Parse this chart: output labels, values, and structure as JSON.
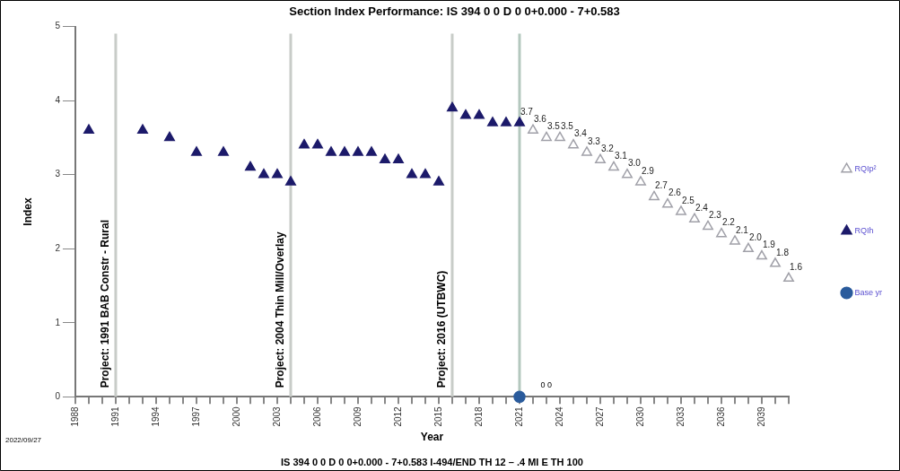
{
  "chart_data": {
    "type": "scatter",
    "title": "Section Index Performance: IS 394 0 0 D 0 0+0.000 - 7+0.583",
    "xlabel": "Year",
    "ylabel": "Index",
    "annotations": [
      "IS 394 0 0 D 0 0+0.000 - 7+0.583 I-494/END TH 12 – .4 MI E TH 100",
      "2022/09/27",
      "0 0"
    ],
    "xlim": [
      1988,
      2041
    ],
    "ylim": [
      0,
      5
    ],
    "yticks": [
      0,
      1,
      2,
      3,
      4,
      5
    ],
    "xticks": [
      1988,
      {
        "value": 1989,
        "label": null
      },
      {
        "value": 1990,
        "label": null
      },
      1991,
      {
        "value": 1992,
        "label": null
      },
      {
        "value": 1993,
        "label": null
      },
      1994,
      {
        "value": 1995,
        "label": null
      },
      {
        "value": 1996,
        "label": null
      },
      1997,
      {
        "value": 1998,
        "label": null
      },
      {
        "value": 1999,
        "label": null
      },
      2000,
      {
        "value": 2001,
        "label": null
      },
      {
        "value": 2002,
        "label": null
      },
      2003,
      {
        "value": 2004,
        "label": null
      },
      {
        "value": 2005,
        "label": null
      },
      2006,
      {
        "value": 2007,
        "label": null
      },
      {
        "value": 2008,
        "label": null
      },
      2009,
      {
        "value": 2010,
        "label": null
      },
      {
        "value": 2011,
        "label": null
      },
      2012,
      {
        "value": 2013,
        "label": null
      },
      {
        "value": 2014,
        "label": null
      },
      2015,
      {
        "value": 2016,
        "label": null
      },
      {
        "value": 2017,
        "label": null
      },
      2018,
      {
        "value": 2019,
        "label": null
      },
      {
        "value": 2020,
        "label": null
      },
      2021,
      {
        "value": 2022,
        "label": null
      },
      {
        "value": 2023,
        "label": null
      },
      2024,
      {
        "value": 2025,
        "label": null
      },
      {
        "value": 2026,
        "label": null
      },
      2027,
      {
        "value": 2028,
        "label": null
      },
      {
        "value": 2029,
        "label": null
      },
      2030,
      {
        "value": 2031,
        "label": null
      },
      {
        "value": 2032,
        "label": null
      },
      2033,
      {
        "value": 2034,
        "label": null
      },
      {
        "value": 2035,
        "label": null
      },
      2036,
      {
        "value": 2037,
        "label": null
      },
      {
        "value": 2038,
        "label": null
      },
      2039,
      {
        "value": 2040,
        "label": null
      },
      {
        "value": 2041,
        "label": null
      }
    ],
    "grid": false,
    "legend": "right",
    "marker": "triangle",
    "ref_lines": [
      {
        "axis": "x",
        "value": 1991,
        "label": "Project: 1991 BAB Constr - Rural",
        "color": "#c8ccc8"
      },
      {
        "axis": "x",
        "value": 2004,
        "label": "Project: 2004 Thin Mill/Overlay",
        "color": "#c8ccc8"
      },
      {
        "axis": "x",
        "value": 2016,
        "label": "Project: 2016 (UTBWC)",
        "color": "#c8ccc8"
      },
      {
        "axis": "x",
        "value": 2021,
        "label": null,
        "color": "#b4c8be"
      }
    ],
    "series": [
      {
        "name": "RQIp²",
        "color": "#a0a0a8",
        "x": [
          2022,
          2023,
          2024,
          2025,
          2026,
          2027,
          2028,
          2029,
          2030,
          2031,
          2032,
          2033,
          2034,
          2035,
          2036,
          2037,
          2038,
          2039,
          2040,
          2041
        ],
        "values": [
          3.6,
          3.5,
          3.5,
          3.4,
          3.3,
          3.2,
          3.1,
          3.0,
          2.9,
          2.7,
          2.6,
          2.5,
          2.4,
          2.3,
          2.2,
          2.1,
          2.0,
          1.9,
          1.8,
          1.6
        ],
        "value_labels": [
          "3.6",
          "3.5",
          "3.5",
          "3.4",
          "3.3",
          "3.2",
          "3.1",
          "3.0",
          "2.9",
          "2.7",
          "2.6",
          "2.5",
          "2.4",
          "2.3",
          "2.2",
          "2.1",
          "2.0",
          "1.9",
          "1.8",
          "1.6"
        ]
      },
      {
        "name": "RQIh",
        "color": "#1c1a6a",
        "x": [
          1989,
          1993,
          1995,
          1997,
          1999,
          2001,
          2002,
          2003,
          2004,
          2005,
          2006,
          2007,
          2008,
          2009,
          2010,
          2011,
          2012,
          2013,
          2014,
          2015,
          2016,
          2017,
          2018,
          2019,
          2020,
          2021
        ],
        "values": [
          3.6,
          3.6,
          3.5,
          3.3,
          3.3,
          3.1,
          3.0,
          3.0,
          2.9,
          3.4,
          3.4,
          3.3,
          3.3,
          3.3,
          3.3,
          3.2,
          3.2,
          3.0,
          3.0,
          2.9,
          3.9,
          3.8,
          3.8,
          3.7,
          3.7,
          3.7
        ],
        "value_labels": [
          null,
          null,
          null,
          null,
          null,
          null,
          null,
          null,
          null,
          null,
          null,
          null,
          null,
          null,
          null,
          null,
          null,
          null,
          null,
          null,
          null,
          null,
          null,
          null,
          null,
          "3.7"
        ]
      },
      {
        "name": "Base yr",
        "marker": "circle",
        "color": "#2a5b9c",
        "x": [
          2021
        ],
        "values": [
          0
        ]
      }
    ]
  }
}
